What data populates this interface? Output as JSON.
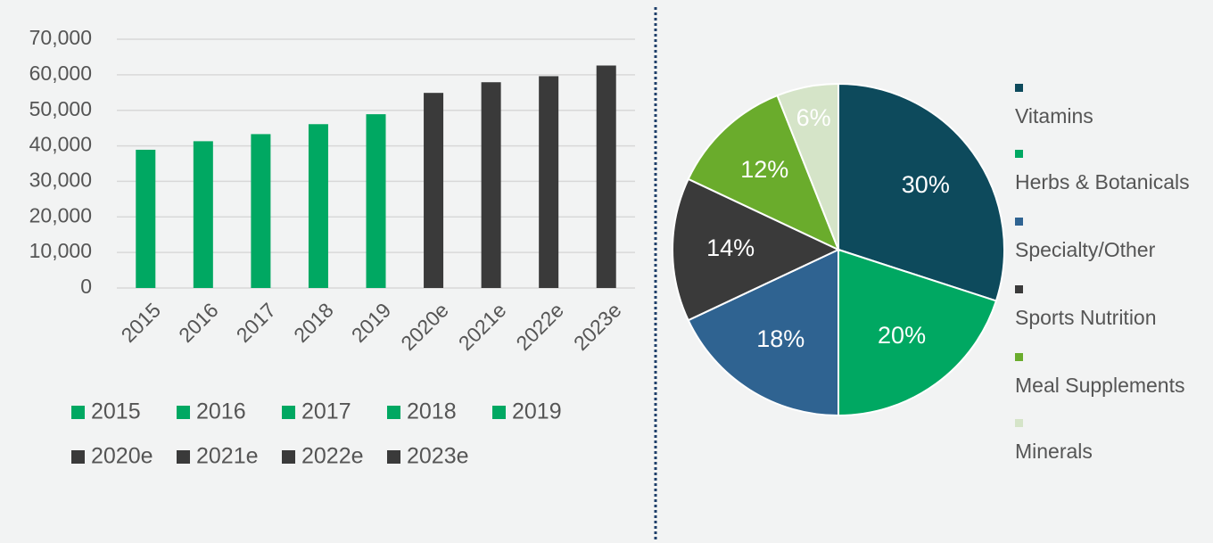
{
  "chart_data": [
    {
      "type": "bar",
      "categories": [
        "2015",
        "2016",
        "2017",
        "2018",
        "2019",
        "2020e",
        "2021e",
        "2022e",
        "2023e"
      ],
      "values": [
        38900,
        41300,
        43300,
        46100,
        48900,
        54900,
        57900,
        59600,
        62600
      ],
      "colors": [
        "#00a862",
        "#00a862",
        "#00a862",
        "#00a862",
        "#00a862",
        "#3a3a3a",
        "#3a3a3a",
        "#3a3a3a",
        "#3a3a3a"
      ],
      "ylim": [
        0,
        70000
      ],
      "yticks": [
        0,
        {
          "value": 10000,
          "label": "10,000"
        },
        {
          "value": 20000,
          "label": "20,000"
        },
        {
          "value": 30000,
          "label": "30,000"
        },
        {
          "value": 40000,
          "label": "40,000"
        },
        {
          "value": 50000,
          "label": "50,000"
        },
        {
          "value": 60000,
          "label": "60,000"
        },
        {
          "value": 70000,
          "label": "70,000"
        }
      ],
      "grid": true
    },
    {
      "type": "pie",
      "categories": [
        "Vitamins",
        "Herbs & Botanicals",
        "Specialty/Other",
        "Sports Nutrition",
        "Meal Supplements",
        "Minerals"
      ],
      "values": [
        30,
        20,
        18,
        14,
        12,
        6
      ],
      "value_labels": [
        "30%",
        "20%",
        "18%",
        "14%",
        "12%",
        "6%"
      ],
      "colors": [
        "#0d4a5c",
        "#00a862",
        "#2f6391",
        "#3a3a3a",
        "#6aac2c",
        "#d5e4c8"
      ]
    }
  ]
}
